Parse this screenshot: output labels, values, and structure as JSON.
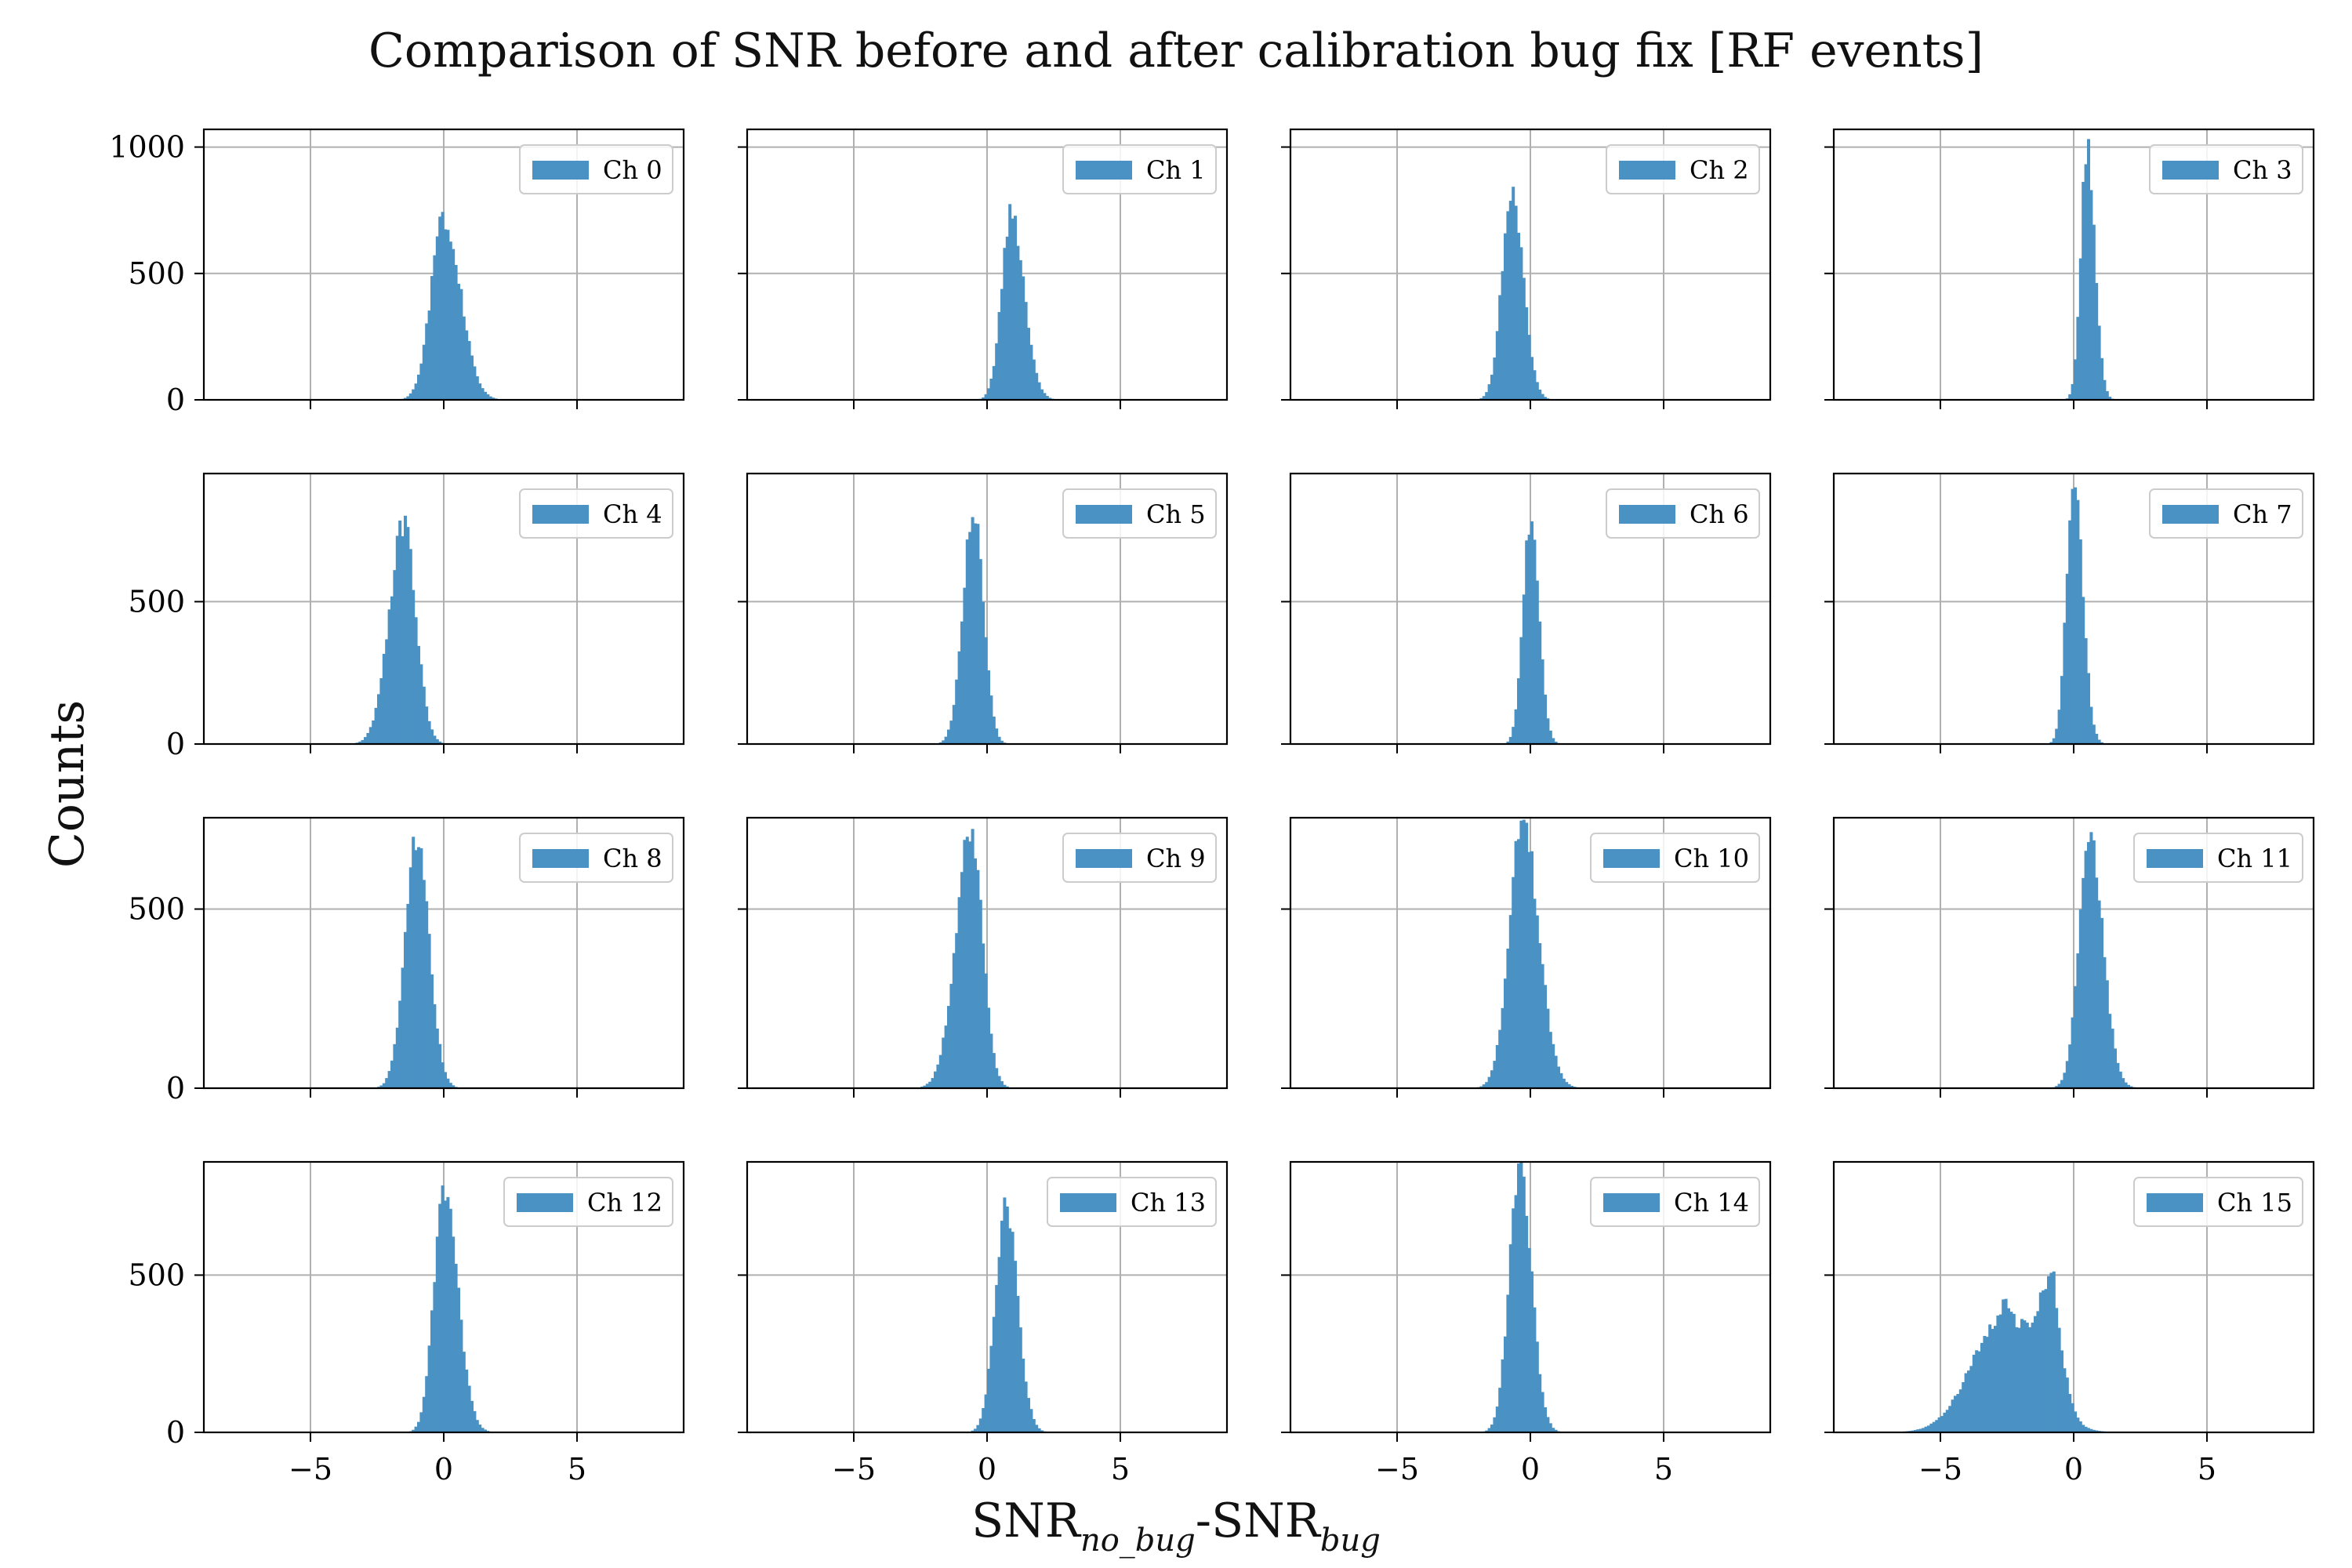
{
  "title": "Comparison of SNR before and after calibration bug fix [RF events]",
  "ylabel": "Counts",
  "xlabel": {
    "base": "SNR",
    "sub1": "no_bug",
    "sep": "-",
    "sub2": "bug"
  },
  "colors": {
    "bar": "#4a91c4",
    "grid": "#b0b0b0",
    "axis": "#000000",
    "text": "#000000"
  },
  "chart_data": {
    "type": "bar",
    "layout": "4x4 grid, shared x axis across all panels, shared y axis per row",
    "xlim": [
      -9,
      9
    ],
    "xticks": [
      -5,
      0,
      5
    ],
    "xtick_labels": [
      "−5",
      "0",
      "5"
    ],
    "grid": true,
    "legend_position": "upper right",
    "bin_width": 0.1,
    "rows": [
      {
        "ylim": [
          0,
          1070
        ],
        "yticks": [
          0,
          500,
          1000
        ],
        "ytick_labels": [
          "0",
          "500",
          "1000"
        ]
      },
      {
        "ylim": [
          0,
          950
        ],
        "yticks": [
          0,
          500
        ],
        "ytick_labels": [
          "0",
          "500"
        ]
      },
      {
        "ylim": [
          0,
          755
        ],
        "yticks": [
          0,
          500
        ],
        "ytick_labels": [
          "0",
          "500"
        ]
      },
      {
        "ylim": [
          0,
          860
        ],
        "yticks": [
          0,
          500
        ],
        "ytick_labels": [
          "0",
          "500"
        ]
      }
    ],
    "series": [
      {
        "name": "Ch 0",
        "center": 0.0,
        "sigma": 0.55,
        "peak": 720,
        "skew": 0.25
      },
      {
        "name": "Ch 1",
        "center": 0.9,
        "sigma": 0.42,
        "peak": 740,
        "skew": 0.3
      },
      {
        "name": "Ch 2",
        "center": -0.7,
        "sigma": 0.4,
        "peak": 820,
        "skew": 0.15
      },
      {
        "name": "Ch 3",
        "center": 0.5,
        "sigma": 0.26,
        "peak": 1010,
        "skew": 0.2
      },
      {
        "name": "Ch 4",
        "center": -1.5,
        "sigma": 0.5,
        "peak": 770,
        "skew": -0.2
      },
      {
        "name": "Ch 5",
        "center": -0.5,
        "sigma": 0.38,
        "peak": 830,
        "skew": -0.1
      },
      {
        "name": "Ch 6",
        "center": 0.0,
        "sigma": 0.3,
        "peak": 780,
        "skew": 0.1
      },
      {
        "name": "Ch 7",
        "center": 0.0,
        "sigma": 0.3,
        "peak": 950,
        "skew": 0.2
      },
      {
        "name": "Ch 8",
        "center": -1.0,
        "sigma": 0.45,
        "peak": 700,
        "skew": 0.0
      },
      {
        "name": "Ch 9",
        "center": -0.6,
        "sigma": 0.5,
        "peak": 720,
        "skew": -0.3
      },
      {
        "name": "Ch 10",
        "center": -0.3,
        "sigma": 0.55,
        "peak": 740,
        "skew": 0.2
      },
      {
        "name": "Ch 11",
        "center": 0.6,
        "sigma": 0.45,
        "peak": 690,
        "skew": 0.2
      },
      {
        "name": "Ch 12",
        "center": 0.0,
        "sigma": 0.45,
        "peak": 770,
        "skew": 0.3
      },
      {
        "name": "Ch 13",
        "center": 0.7,
        "sigma": 0.42,
        "peak": 720,
        "skew": 0.1
      },
      {
        "name": "Ch 14",
        "center": -0.4,
        "sigma": 0.42,
        "peak": 830,
        "skew": 0.1
      },
      {
        "name": "Ch 15",
        "components": [
          {
            "center": -2.6,
            "sigma": 1.2,
            "peak": 370
          },
          {
            "center": -0.9,
            "sigma": 0.45,
            "peak": 320
          },
          {
            "center": -0.8,
            "sigma": 0.12,
            "peak": 90
          },
          {
            "center": -2.5,
            "sigma": 0.15,
            "peak": 50
          }
        ]
      }
    ]
  }
}
